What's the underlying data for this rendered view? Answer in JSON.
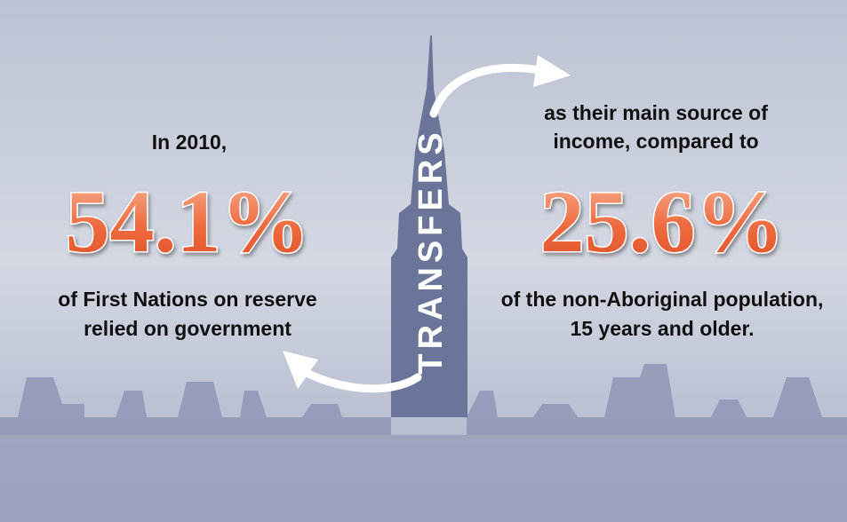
{
  "left": {
    "intro": "In 2010,",
    "figure": "54.1%",
    "description": [
      "of First Nations on reserve",
      "relied on government"
    ]
  },
  "center": {
    "label": "TRANSFERS"
  },
  "right": {
    "intro": [
      "as their main source of",
      "income, compared to"
    ],
    "figure": "25.6%",
    "description": [
      "of the non-Aboriginal population,",
      "15 years and older."
    ]
  }
}
